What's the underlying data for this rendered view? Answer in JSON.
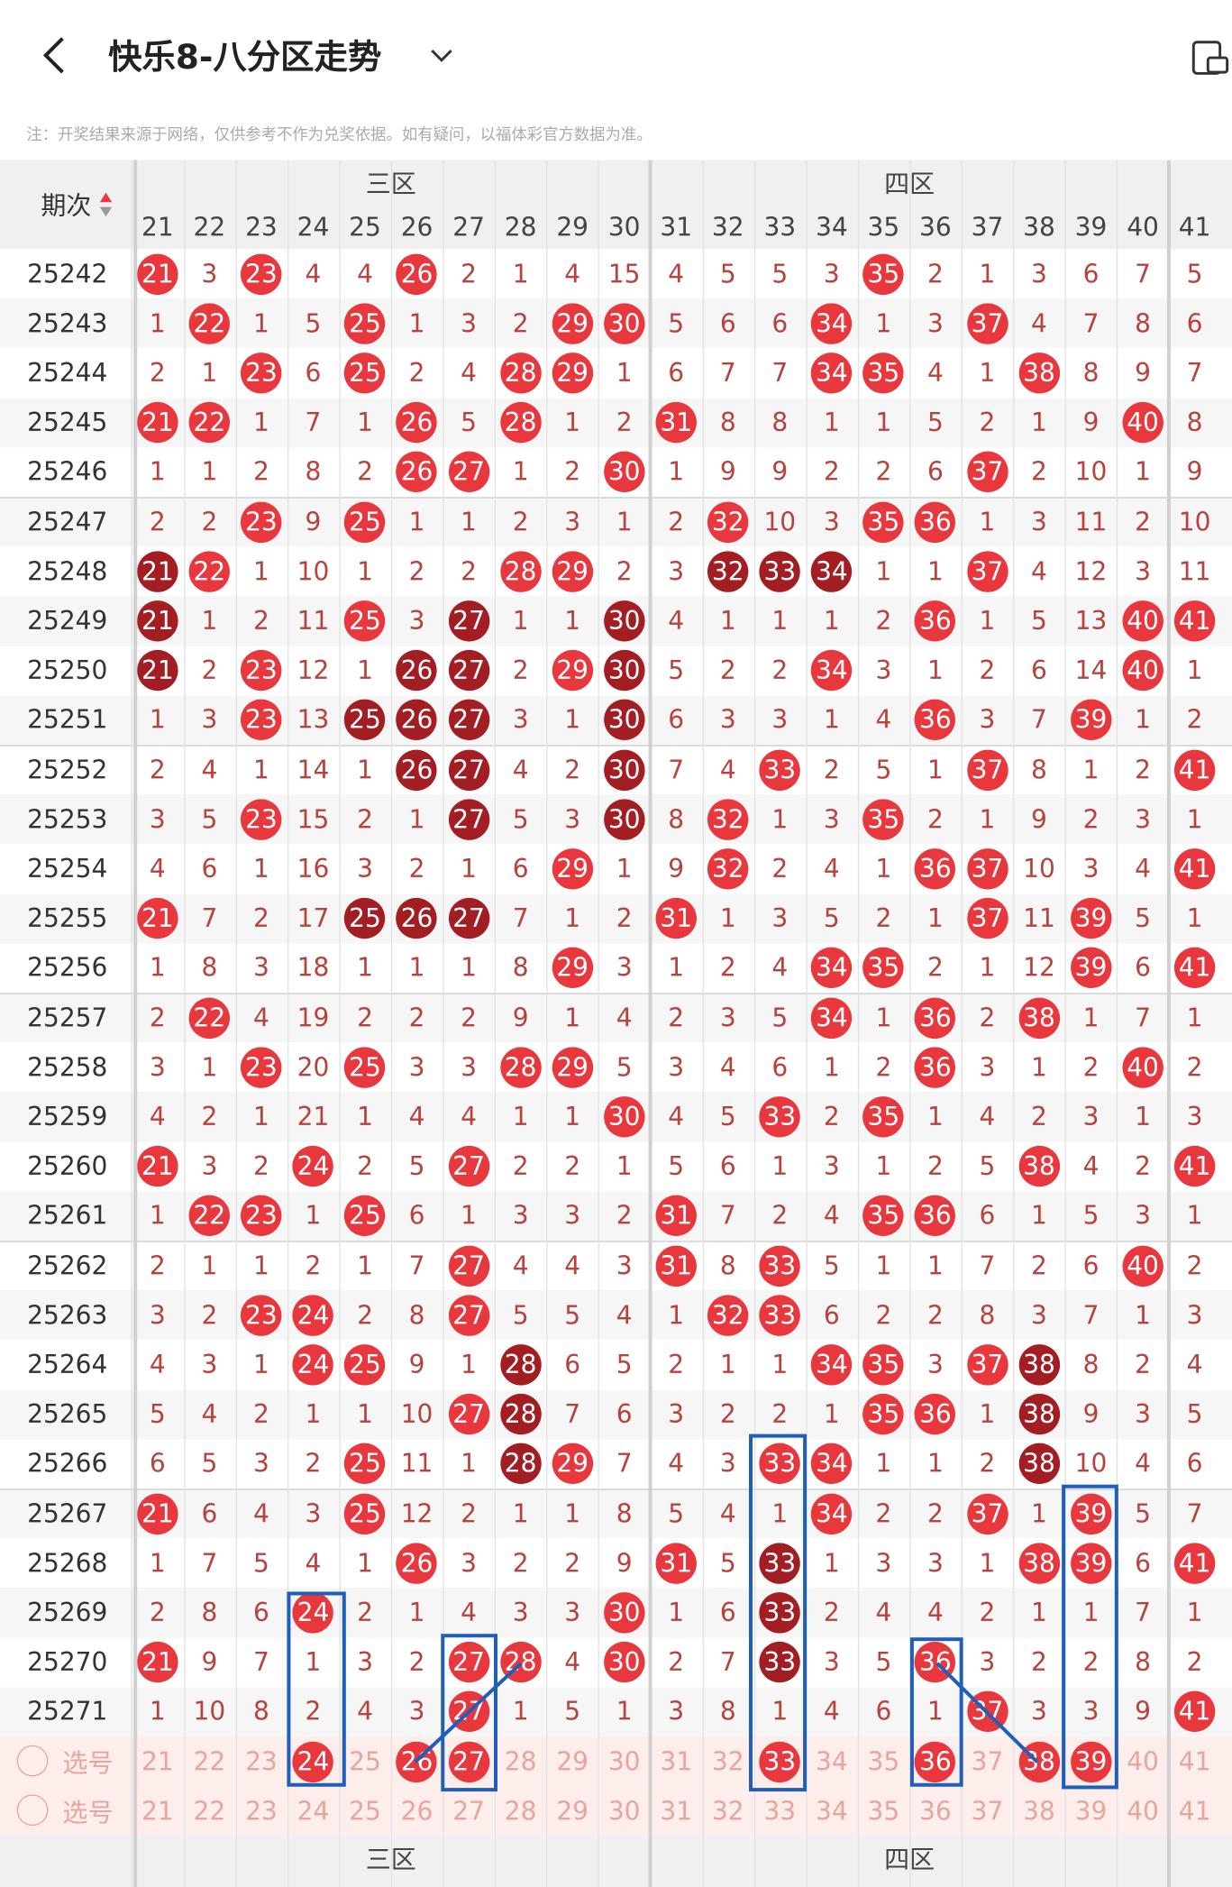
{
  "header": {
    "title": "快乐8-八分区走势",
    "note": "注：开奖结果来源于网络，仅供参考不作为兑奖依据。如有疑问，以福体彩官方数据为准。"
  },
  "table": {
    "period_header": "期次",
    "zones": [
      "三区",
      "四区"
    ],
    "columns": [
      21,
      22,
      23,
      24,
      25,
      26,
      27,
      28,
      29,
      30,
      31,
      32,
      33,
      34,
      35,
      36,
      37,
      38,
      39,
      40,
      41
    ],
    "rows": [
      {
        "period": "25242",
        "cells": [
          21,
          3,
          23,
          4,
          4,
          26,
          2,
          1,
          4,
          15,
          4,
          5,
          5,
          3,
          35,
          2,
          1,
          3,
          6,
          7,
          5
        ],
        "red": [
          0,
          2,
          5,
          14
        ]
      },
      {
        "period": "25243",
        "cells": [
          1,
          22,
          1,
          5,
          25,
          1,
          3,
          2,
          29,
          30,
          5,
          6,
          6,
          34,
          1,
          3,
          37,
          4,
          7,
          8,
          6
        ],
        "red": [
          1,
          4,
          8,
          9,
          13,
          16
        ]
      },
      {
        "period": "25244",
        "cells": [
          2,
          1,
          23,
          6,
          25,
          2,
          4,
          28,
          29,
          1,
          6,
          7,
          7,
          34,
          35,
          4,
          1,
          38,
          8,
          9,
          7
        ],
        "red": [
          2,
          4,
          7,
          8,
          13,
          14,
          17
        ]
      },
      {
        "period": "25245",
        "cells": [
          21,
          22,
          1,
          7,
          1,
          26,
          5,
          28,
          1,
          2,
          31,
          8,
          8,
          1,
          1,
          5,
          2,
          1,
          9,
          40,
          8
        ],
        "red": [
          0,
          1,
          5,
          7,
          10,
          19
        ]
      },
      {
        "period": "25246",
        "cells": [
          1,
          1,
          2,
          8,
          2,
          26,
          27,
          1,
          2,
          30,
          1,
          9,
          9,
          2,
          2,
          6,
          37,
          2,
          10,
          1,
          9
        ],
        "red": [
          5,
          6,
          9,
          16
        ]
      },
      {
        "period": "25247",
        "cells": [
          2,
          2,
          23,
          9,
          25,
          1,
          1,
          2,
          3,
          1,
          2,
          32,
          10,
          3,
          35,
          36,
          1,
          3,
          11,
          2,
          10
        ],
        "red": [
          2,
          4,
          11,
          14,
          15
        ]
      },
      {
        "period": "25248",
        "cells": [
          21,
          22,
          1,
          10,
          1,
          2,
          2,
          28,
          29,
          2,
          3,
          32,
          33,
          34,
          1,
          1,
          37,
          4,
          12,
          3,
          11
        ],
        "red": [
          1,
          7,
          8,
          16
        ],
        "dark": [
          0,
          11,
          12,
          13
        ]
      },
      {
        "period": "25249",
        "cells": [
          21,
          1,
          2,
          11,
          25,
          3,
          27,
          1,
          1,
          30,
          4,
          1,
          1,
          1,
          2,
          36,
          1,
          5,
          13,
          40,
          41
        ],
        "red": [
          4,
          15,
          19,
          20
        ],
        "dark": [
          0,
          6,
          9
        ]
      },
      {
        "period": "25250",
        "cells": [
          21,
          2,
          23,
          12,
          1,
          26,
          27,
          2,
          29,
          30,
          5,
          2,
          2,
          34,
          3,
          1,
          2,
          6,
          14,
          40,
          1
        ],
        "red": [
          2,
          8,
          13,
          19
        ],
        "dark": [
          0,
          5,
          6,
          9
        ]
      },
      {
        "period": "25251",
        "cells": [
          1,
          3,
          23,
          13,
          25,
          26,
          27,
          3,
          1,
          30,
          6,
          3,
          3,
          1,
          4,
          36,
          3,
          7,
          39,
          1,
          2
        ],
        "red": [
          2,
          15,
          18
        ],
        "dark": [
          4,
          5,
          6,
          9
        ]
      },
      {
        "period": "25252",
        "cells": [
          2,
          4,
          1,
          14,
          1,
          26,
          27,
          4,
          2,
          30,
          7,
          4,
          33,
          2,
          5,
          1,
          37,
          8,
          1,
          2,
          41
        ],
        "red": [
          12,
          16,
          20
        ],
        "dark": [
          5,
          6,
          9
        ]
      },
      {
        "period": "25253",
        "cells": [
          3,
          5,
          23,
          15,
          2,
          1,
          27,
          5,
          3,
          30,
          8,
          32,
          1,
          3,
          35,
          2,
          1,
          9,
          2,
          3,
          1
        ],
        "red": [
          2,
          11,
          14
        ],
        "dark": [
          6,
          9
        ]
      },
      {
        "period": "25254",
        "cells": [
          4,
          6,
          1,
          16,
          3,
          2,
          1,
          6,
          29,
          1,
          9,
          32,
          2,
          4,
          1,
          36,
          37,
          10,
          3,
          4,
          41
        ],
        "red": [
          8,
          11,
          15,
          16,
          20
        ]
      },
      {
        "period": "25255",
        "cells": [
          21,
          7,
          2,
          17,
          25,
          26,
          27,
          7,
          1,
          2,
          31,
          1,
          3,
          5,
          2,
          1,
          37,
          11,
          39,
          5,
          1
        ],
        "red": [
          0,
          10,
          16,
          18
        ],
        "dark": [
          4,
          5,
          6
        ]
      },
      {
        "period": "25256",
        "cells": [
          1,
          8,
          3,
          18,
          1,
          1,
          1,
          8,
          29,
          3,
          1,
          2,
          4,
          34,
          35,
          2,
          1,
          12,
          39,
          6,
          41
        ],
        "red": [
          8,
          13,
          14,
          18,
          20
        ]
      },
      {
        "period": "25257",
        "cells": [
          2,
          22,
          4,
          19,
          2,
          2,
          2,
          9,
          1,
          4,
          2,
          3,
          5,
          34,
          1,
          36,
          2,
          38,
          1,
          7,
          1
        ],
        "red": [
          1,
          13,
          15,
          17
        ]
      },
      {
        "period": "25258",
        "cells": [
          3,
          1,
          23,
          20,
          25,
          3,
          3,
          28,
          29,
          5,
          3,
          4,
          6,
          1,
          2,
          36,
          3,
          1,
          2,
          40,
          2
        ],
        "red": [
          2,
          4,
          7,
          8,
          15,
          19
        ]
      },
      {
        "period": "25259",
        "cells": [
          4,
          2,
          1,
          21,
          1,
          4,
          4,
          1,
          1,
          30,
          4,
          5,
          33,
          2,
          35,
          1,
          4,
          2,
          3,
          1,
          3
        ],
        "red": [
          9,
          12,
          14
        ]
      },
      {
        "period": "25260",
        "cells": [
          21,
          3,
          2,
          24,
          2,
          5,
          27,
          2,
          2,
          1,
          5,
          6,
          1,
          3,
          1,
          2,
          5,
          38,
          4,
          2,
          41
        ],
        "red": [
          0,
          3,
          6,
          17,
          20
        ]
      },
      {
        "period": "25261",
        "cells": [
          1,
          22,
          23,
          1,
          25,
          6,
          1,
          3,
          3,
          2,
          31,
          7,
          2,
          4,
          35,
          36,
          6,
          1,
          5,
          3,
          1
        ],
        "red": [
          1,
          2,
          4,
          10,
          14,
          15
        ]
      },
      {
        "period": "25262",
        "cells": [
          2,
          1,
          1,
          2,
          1,
          7,
          27,
          4,
          4,
          3,
          31,
          8,
          33,
          5,
          1,
          1,
          7,
          2,
          6,
          40,
          2
        ],
        "red": [
          6,
          10,
          12,
          19
        ]
      },
      {
        "period": "25263",
        "cells": [
          3,
          2,
          23,
          24,
          2,
          8,
          27,
          5,
          5,
          4,
          1,
          32,
          33,
          6,
          2,
          2,
          8,
          3,
          7,
          1,
          3
        ],
        "red": [
          2,
          3,
          6,
          11,
          12
        ]
      },
      {
        "period": "25264",
        "cells": [
          4,
          3,
          1,
          24,
          25,
          9,
          1,
          28,
          6,
          5,
          2,
          1,
          1,
          34,
          35,
          3,
          37,
          38,
          8,
          2,
          4
        ],
        "red": [
          3,
          4,
          13,
          14,
          16
        ],
        "dark": [
          7,
          17
        ]
      },
      {
        "period": "25265",
        "cells": [
          5,
          4,
          2,
          1,
          1,
          10,
          27,
          28,
          7,
          6,
          3,
          2,
          2,
          1,
          35,
          36,
          1,
          38,
          9,
          3,
          5
        ],
        "red": [
          6,
          14,
          15
        ],
        "dark": [
          7,
          17
        ]
      },
      {
        "period": "25266",
        "cells": [
          6,
          5,
          3,
          2,
          25,
          11,
          1,
          28,
          29,
          7,
          4,
          3,
          33,
          34,
          1,
          1,
          2,
          38,
          10,
          4,
          6
        ],
        "red": [
          4,
          8,
          12,
          13
        ],
        "dark": [
          7,
          17
        ]
      },
      {
        "period": "25267",
        "cells": [
          21,
          6,
          4,
          3,
          25,
          12,
          2,
          1,
          1,
          8,
          5,
          4,
          1,
          34,
          2,
          2,
          37,
          1,
          39,
          5,
          7
        ],
        "red": [
          0,
          4,
          13,
          16,
          18
        ]
      },
      {
        "period": "25268",
        "cells": [
          1,
          7,
          5,
          4,
          1,
          26,
          3,
          2,
          2,
          9,
          31,
          5,
          33,
          1,
          3,
          3,
          1,
          38,
          39,
          6,
          41
        ],
        "red": [
          5,
          10,
          17,
          18,
          20
        ],
        "dark": [
          12
        ]
      },
      {
        "period": "25269",
        "cells": [
          2,
          8,
          6,
          24,
          2,
          1,
          4,
          3,
          3,
          30,
          1,
          6,
          33,
          2,
          4,
          4,
          2,
          1,
          1,
          7,
          1
        ],
        "red": [
          3,
          9
        ],
        "dark": [
          12
        ]
      },
      {
        "period": "25270",
        "cells": [
          21,
          9,
          7,
          1,
          3,
          2,
          27,
          28,
          4,
          30,
          2,
          7,
          33,
          3,
          5,
          36,
          3,
          2,
          2,
          8,
          2
        ],
        "red": [
          0,
          6,
          7,
          9,
          15
        ],
        "dark": [
          12
        ]
      },
      {
        "period": "25271",
        "cells": [
          1,
          10,
          8,
          2,
          4,
          3,
          27,
          1,
          5,
          1,
          3,
          8,
          1,
          4,
          6,
          1,
          37,
          3,
          3,
          9,
          41
        ],
        "red": [
          6,
          16,
          20
        ]
      }
    ],
    "select_label": "选号",
    "selection": [
      3,
      5,
      6,
      12,
      15,
      17,
      18
    ]
  }
}
